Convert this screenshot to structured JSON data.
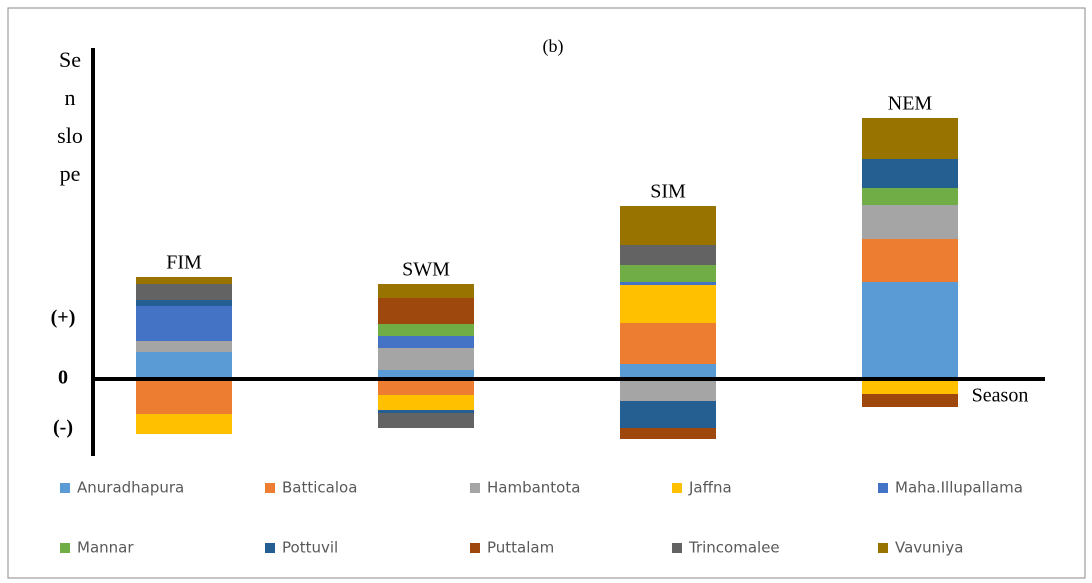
{
  "chart_data": {
    "type": "bar",
    "stacked": true,
    "title": "(b)",
    "y_label_lines": [
      "Se",
      "n",
      "slo",
      "pe"
    ],
    "x_label": "Season",
    "categories": [
      "FIM",
      "SWM",
      "SIM",
      "NEM"
    ],
    "ylim": [
      -8,
      33
    ],
    "yticks": [
      {
        "value": 6,
        "label": "(+)"
      },
      0,
      {
        "value": -5,
        "label": "(-)"
      }
    ],
    "series": [
      {
        "name": "Anuradhapura",
        "color": "#5b9bd5",
        "values": [
          2.7,
          0.9,
          1.5,
          9.7
        ]
      },
      {
        "name": "Batticaloa",
        "color": "#ed7d31",
        "values": [
          -3.5,
          -1.6,
          4.1,
          4.3
        ]
      },
      {
        "name": "Hambantota",
        "color": "#a5a5a5",
        "values": [
          1.1,
          2.2,
          -2.2,
          3.4
        ]
      },
      {
        "name": "Jaffna",
        "color": "#ffc000",
        "values": [
          -2.0,
          -1.5,
          3.8,
          -1.5
        ]
      },
      {
        "name": "Maha.Illupallama",
        "color": "#4472c4",
        "values": [
          3.5,
          1.2,
          0.3,
          0
        ]
      },
      {
        "name": "Mannar",
        "color": "#70ad47",
        "values": [
          0,
          1.2,
          1.7,
          1.7
        ]
      },
      {
        "name": "Pottuvil",
        "color": "#255e91",
        "values": [
          0.6,
          -0.3,
          -2.7,
          2.9
        ]
      },
      {
        "name": "Puttalam",
        "color": "#9e480e",
        "values": [
          0,
          2.6,
          -1.1,
          -1.3
        ]
      },
      {
        "name": "Trincomalee",
        "color": "#636363",
        "values": [
          1.6,
          -1.5,
          2.0,
          0
        ]
      },
      {
        "name": "Vavuniya",
        "color": "#997300",
        "values": [
          0.7,
          1.4,
          3.9,
          4.1
        ]
      }
    ]
  }
}
